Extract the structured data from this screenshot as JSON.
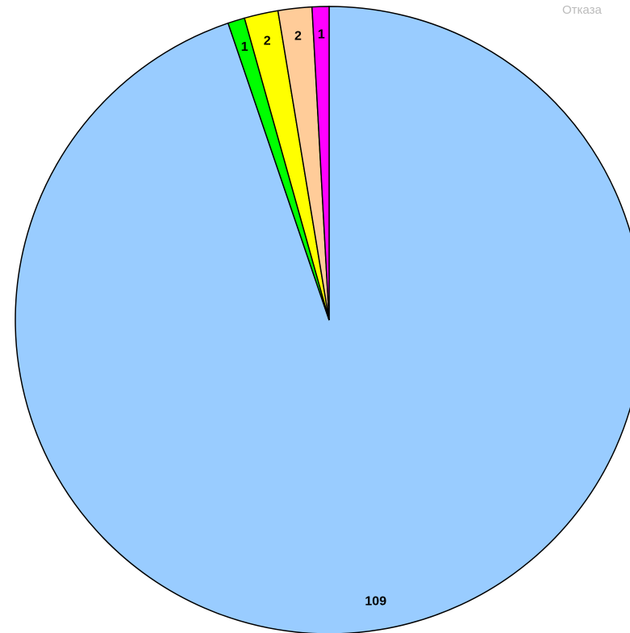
{
  "chart_data": {
    "type": "pie",
    "values": [
      109,
      1,
      2,
      2,
      1
    ],
    "colors": [
      "#99ccff",
      "#00ff00",
      "#ffff00",
      "#ffcc99",
      "#ff00ff"
    ],
    "legend_text": "Отказа"
  }
}
